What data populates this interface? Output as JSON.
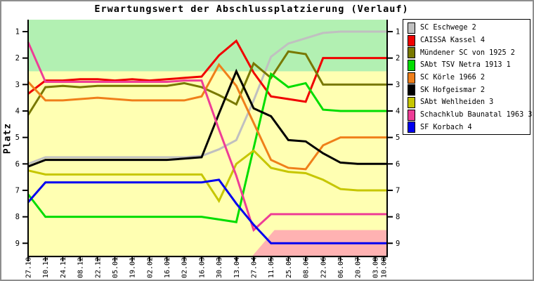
{
  "window": {
    "frame_color": "#8e8e8e",
    "background": "#ffffff"
  },
  "chart_data": {
    "type": "line",
    "title": "Erwartungswert der Abschlussplatzierung (Verlauf)",
    "ylabel": "Platz",
    "y_axis_inverted": true,
    "ylim": [
      0.55,
      9.5
    ],
    "y_ticks": [
      "1",
      "2",
      "3",
      "4",
      "5",
      "6",
      "7",
      "8",
      "9"
    ],
    "grid": false,
    "legend_position": "top-right",
    "x_tick_labels_rotated": true,
    "categories": [
      "27.10",
      "10.11",
      "24.11",
      "08.12",
      "22.12",
      "05.01",
      "19.01",
      "02.02",
      "16.02",
      "02.03",
      "16.03",
      "30.03",
      "13.04",
      "27.04",
      "11.05",
      "25.05",
      "08.06",
      "22.06",
      "06.07",
      "20.07",
      "03.08",
      "10.08"
    ],
    "week_offsets": [
      0,
      2,
      4,
      6,
      8,
      10,
      12,
      14,
      16,
      18,
      20,
      22,
      24,
      26,
      28,
      30,
      32,
      34,
      36,
      38,
      40,
      41
    ],
    "zones": [
      {
        "id": "promotion",
        "color": "#b2f0b2",
        "from_place": 0.55,
        "to_place": 2.5,
        "full_width": true
      },
      {
        "id": "neutral",
        "color": "#ffffb2",
        "from_place": 2.5,
        "to_place": 9.5,
        "full_width": true
      },
      {
        "id": "relegation",
        "color": "#ffb2b2",
        "from_place": 8.5,
        "to_place": 9.5,
        "full_width": false,
        "ramp_start_week": 25.8,
        "ramp_top_week": 28.4
      }
    ],
    "series": [
      {
        "name": "SC Eschwege 2",
        "color": "#c0c0c0",
        "values": [
          6.0,
          5.75,
          5.75,
          5.75,
          5.75,
          5.75,
          5.75,
          5.75,
          5.75,
          5.75,
          5.7,
          5.45,
          5.1,
          3.6,
          1.95,
          1.45,
          1.25,
          1.05,
          1.0,
          1.0,
          1.0,
          1.0
        ]
      },
      {
        "name": "CAISSA Kassel 4",
        "color": "#f00000",
        "values": [
          3.35,
          2.85,
          2.85,
          2.8,
          2.8,
          2.85,
          2.8,
          2.85,
          2.8,
          2.75,
          2.7,
          1.9,
          1.35,
          2.55,
          3.45,
          3.55,
          3.65,
          2.0,
          2.0,
          2.0,
          2.0,
          2.0
        ]
      },
      {
        "name": "Mündener SC von 1925 2",
        "color": "#787800",
        "values": [
          4.15,
          3.1,
          3.05,
          3.1,
          3.05,
          3.05,
          3.05,
          3.05,
          3.05,
          2.95,
          3.1,
          3.4,
          3.75,
          2.2,
          2.75,
          1.75,
          1.85,
          3.0,
          3.0,
          3.0,
          3.0,
          3.0
        ]
      },
      {
        "name": "SAbt TSV Netra 1913 1",
        "color": "#00dd00",
        "values": [
          7.15,
          8.0,
          8.0,
          8.0,
          8.0,
          8.0,
          8.0,
          8.0,
          8.0,
          8.0,
          8.0,
          8.1,
          8.2,
          5.4,
          2.6,
          3.1,
          2.95,
          3.95,
          4.0,
          4.0,
          4.0,
          4.0
        ]
      },
      {
        "name": "SC Körle 1966 2",
        "color": "#ef7f1a",
        "values": [
          2.9,
          3.6,
          3.6,
          3.55,
          3.5,
          3.55,
          3.6,
          3.6,
          3.6,
          3.6,
          3.45,
          2.25,
          3.05,
          4.45,
          5.85,
          6.15,
          6.2,
          5.3,
          5.0,
          5.0,
          5.0,
          5.0
        ]
      },
      {
        "name": "SK Hofgeismar 2",
        "color": "#000000",
        "values": [
          6.1,
          5.85,
          5.85,
          5.85,
          5.85,
          5.85,
          5.85,
          5.85,
          5.85,
          5.8,
          5.75,
          4.1,
          2.5,
          3.9,
          4.2,
          5.1,
          5.15,
          5.6,
          5.95,
          6.0,
          6.0,
          6.0
        ]
      },
      {
        "name": "SAbt Wehlheiden 3",
        "color": "#c6c600",
        "values": [
          6.25,
          6.4,
          6.4,
          6.4,
          6.4,
          6.4,
          6.4,
          6.4,
          6.4,
          6.4,
          6.4,
          7.4,
          6.0,
          5.5,
          6.15,
          6.3,
          6.35,
          6.6,
          6.95,
          7.0,
          7.0,
          7.0
        ]
      },
      {
        "name": "Schachklub Baunatal 1963 3",
        "color": "#ee3d96",
        "values": [
          1.4,
          2.9,
          2.9,
          2.9,
          2.9,
          2.9,
          2.9,
          2.9,
          2.9,
          2.85,
          2.85,
          4.7,
          6.45,
          8.5,
          7.9,
          7.9,
          7.9,
          7.9,
          7.9,
          7.9,
          7.9,
          7.9
        ]
      },
      {
        "name": "SF Korbach 4",
        "color": "#0000f0",
        "values": [
          7.45,
          6.7,
          6.7,
          6.7,
          6.7,
          6.7,
          6.7,
          6.7,
          6.7,
          6.7,
          6.7,
          6.6,
          7.5,
          8.3,
          9.0,
          9.0,
          9.0,
          9.0,
          9.0,
          9.0,
          9.0,
          9.0
        ]
      }
    ]
  }
}
